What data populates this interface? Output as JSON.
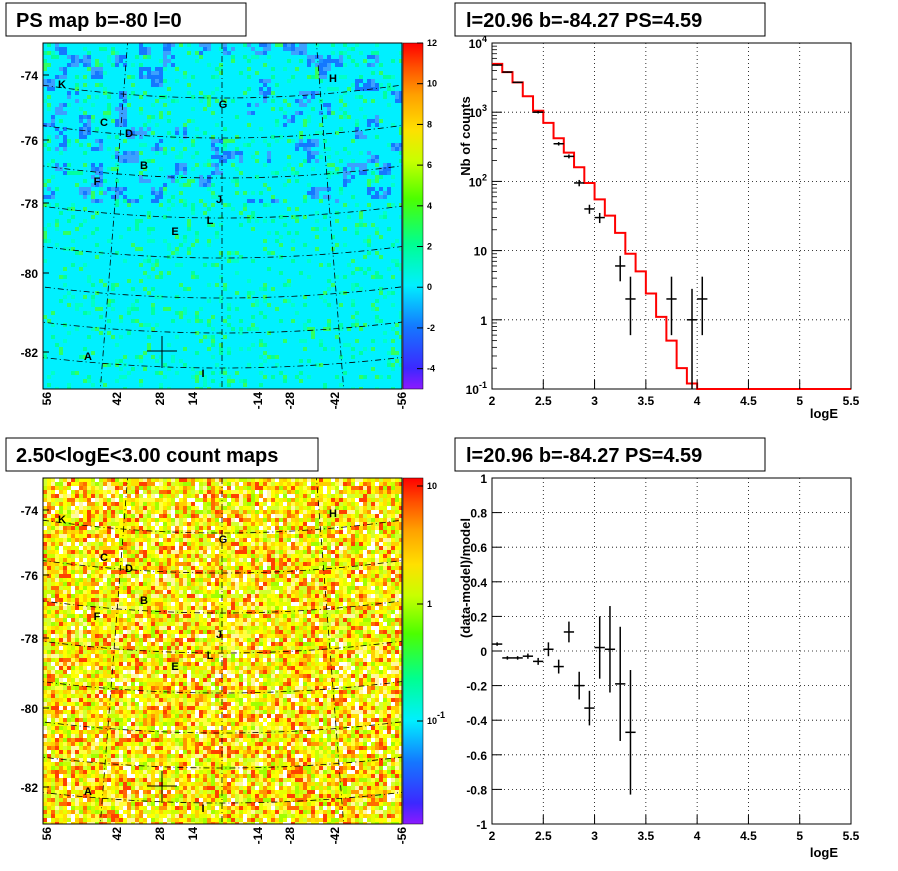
{
  "chart_data": [
    {
      "id": "ps_map",
      "type": "heatmap",
      "title": "PS map b=-80 l=0",
      "y_ticks": [
        "-74",
        "-76",
        "-78",
        "-80",
        "-82"
      ],
      "x_ticks": [
        "56",
        "42",
        "28",
        "14",
        "-14",
        "-28",
        "-42",
        "-56"
      ],
      "colorbar": {
        "ticks": [
          "12",
          "10",
          "8",
          "6",
          "4",
          "2",
          "0",
          "-2",
          "-4"
        ],
        "range": [
          -5,
          12
        ]
      },
      "sources": [
        "K",
        "H",
        "G",
        "C",
        "D",
        "B",
        "F",
        "J",
        "L",
        "E",
        "A",
        "I"
      ]
    },
    {
      "id": "spectrum",
      "type": "line",
      "title": "l=20.96 b=-84.27 PS=4.59",
      "xlabel": "logE",
      "ylabel": "Nb of counts",
      "xlim": [
        2,
        5.5
      ],
      "ylim": [
        0.1,
        10000
      ],
      "yscale": "log",
      "x_ticks": [
        "2",
        "2.5",
        "3",
        "3.5",
        "4",
        "4.5",
        "5",
        "5.5"
      ],
      "y_ticks": [
        "10^4",
        "10^3",
        "10^2",
        "10",
        "1",
        "10^-1"
      ],
      "model_color": "#ff0000",
      "model_step": {
        "edges": [
          2.0,
          2.1,
          2.2,
          2.3,
          2.4,
          2.5,
          2.6,
          2.7,
          2.8,
          2.9,
          3.0,
          3.1,
          3.2,
          3.3,
          3.4,
          3.5,
          3.6,
          3.7,
          3.8,
          3.9,
          4.0,
          5.5
        ],
        "values": [
          5000,
          3800,
          2700,
          1700,
          1050,
          700,
          420,
          260,
          160,
          95,
          55,
          32,
          18,
          9,
          5,
          2.4,
          1.1,
          0.5,
          0.2,
          0.12,
          0.1
        ]
      },
      "data_points": [
        {
          "x": 2.05,
          "y": 4800,
          "lo": 4700,
          "hi": 4900,
          "xerr": 0.05
        },
        {
          "x": 2.15,
          "y": 3800,
          "lo": 3720,
          "hi": 3880,
          "xerr": 0.05
        },
        {
          "x": 2.25,
          "y": 2700,
          "lo": 2640,
          "hi": 2760,
          "xerr": 0.05
        },
        {
          "x": 2.45,
          "y": 1000,
          "lo": 960,
          "hi": 1040,
          "xerr": 0.05
        },
        {
          "x": 2.65,
          "y": 350,
          "lo": 330,
          "hi": 370,
          "xerr": 0.05
        },
        {
          "x": 2.75,
          "y": 230,
          "lo": 215,
          "hi": 245,
          "xerr": 0.05
        },
        {
          "x": 2.85,
          "y": 95,
          "lo": 85,
          "hi": 105,
          "xerr": 0.05
        },
        {
          "x": 2.95,
          "y": 40,
          "lo": 34,
          "hi": 46,
          "xerr": 0.05
        },
        {
          "x": 3.05,
          "y": 30,
          "lo": 25,
          "hi": 35,
          "xerr": 0.05
        },
        {
          "x": 3.25,
          "y": 6,
          "lo": 3.6,
          "hi": 8.4,
          "xerr": 0.05
        },
        {
          "x": 3.35,
          "y": 2,
          "lo": 0.6,
          "hi": 4.2,
          "xerr": 0.05
        },
        {
          "x": 3.75,
          "y": 2,
          "lo": 0.6,
          "hi": 4.2,
          "xerr": 0.05
        },
        {
          "x": 3.95,
          "y": 1,
          "lo": 0.1,
          "hi": 2.8,
          "xerr": 0.05
        },
        {
          "x": 4.05,
          "y": 2,
          "lo": 0.6,
          "hi": 4.2,
          "xerr": 0.05
        }
      ]
    },
    {
      "id": "count_map",
      "type": "heatmap",
      "title": "2.50<logE<3.00 count maps",
      "y_ticks": [
        "-74",
        "-76",
        "-78",
        "-80",
        "-82"
      ],
      "x_ticks": [
        "56",
        "42",
        "28",
        "14",
        "-14",
        "-28",
        "-42",
        "-56"
      ],
      "colorbar": {
        "ticks": [
          "10",
          "1",
          "10^-1"
        ],
        "scale": "log"
      },
      "sources": [
        "K",
        "H",
        "G",
        "C",
        "D",
        "B",
        "F",
        "J",
        "L",
        "E",
        "A",
        "I"
      ]
    },
    {
      "id": "residuals",
      "type": "scatter",
      "title": "l=20.96 b=-84.27 PS=4.59",
      "xlabel": "logE",
      "ylabel": "(data-model)/model",
      "xlim": [
        2,
        5.5
      ],
      "ylim": [
        -1,
        1
      ],
      "x_ticks": [
        "2",
        "2.5",
        "3",
        "3.5",
        "4",
        "4.5",
        "5",
        "5.5"
      ],
      "y_ticks": [
        "1",
        "0.8",
        "0.6",
        "0.4",
        "0.2",
        "0",
        "-0.2",
        "-0.4",
        "-0.6",
        "-0.8",
        "-1"
      ],
      "data_points": [
        {
          "x": 2.05,
          "y": 0.04,
          "err": 0.01,
          "xerr": 0.05
        },
        {
          "x": 2.15,
          "y": -0.04,
          "err": 0.01,
          "xerr": 0.05
        },
        {
          "x": 2.25,
          "y": -0.04,
          "err": 0.01,
          "xerr": 0.05
        },
        {
          "x": 2.35,
          "y": -0.03,
          "err": 0.015,
          "xerr": 0.05
        },
        {
          "x": 2.45,
          "y": -0.06,
          "err": 0.02,
          "xerr": 0.05
        },
        {
          "x": 2.55,
          "y": 0.01,
          "err": 0.04,
          "xerr": 0.05
        },
        {
          "x": 2.65,
          "y": -0.09,
          "err": 0.04,
          "xerr": 0.05
        },
        {
          "x": 2.75,
          "y": 0.11,
          "err": 0.06,
          "xerr": 0.05
        },
        {
          "x": 2.85,
          "y": -0.2,
          "err": 0.08,
          "xerr": 0.05
        },
        {
          "x": 2.95,
          "y": -0.33,
          "err": 0.1,
          "xerr": 0.05
        },
        {
          "x": 3.05,
          "y": 0.02,
          "err": 0.18,
          "xerr": 0.05
        },
        {
          "x": 3.15,
          "y": 0.01,
          "err": 0.25,
          "xerr": 0.05
        },
        {
          "x": 3.25,
          "y": -0.19,
          "err": 0.33,
          "xerr": 0.05
        },
        {
          "x": 3.35,
          "y": -0.47,
          "err": 0.36,
          "xerr": 0.05
        }
      ]
    }
  ]
}
